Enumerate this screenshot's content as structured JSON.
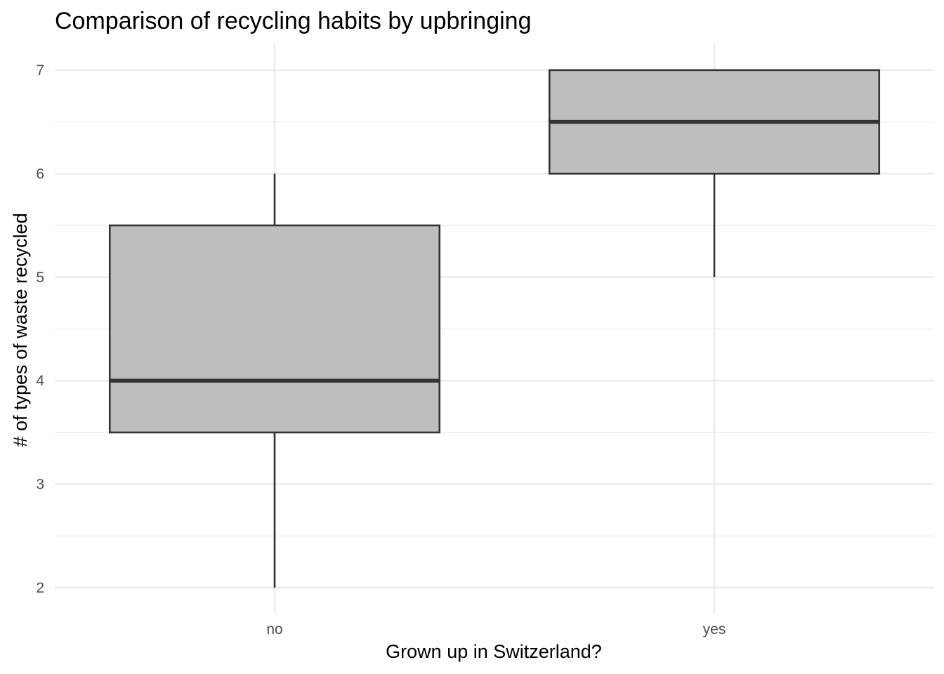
{
  "chart_data": {
    "type": "boxplot",
    "title": "Comparison of recycling habits by upbringing",
    "xlabel": "Grown up in Switzerland?",
    "ylabel": "# of types of waste recycled",
    "categories": [
      "no",
      "yes"
    ],
    "boxes": [
      {
        "category": "no",
        "min": 2,
        "q1": 3.5,
        "median": 4,
        "q3": 5.5,
        "max": 6
      },
      {
        "category": "yes",
        "min": 5,
        "q1": 6,
        "median": 6.5,
        "q3": 7,
        "max": 7
      }
    ],
    "ylim": [
      1.75,
      7.25
    ],
    "yticks": [
      2,
      3,
      4,
      5,
      6,
      7
    ],
    "grid": true,
    "colors": {
      "box_fill": "#bebebe",
      "box_stroke": "#333333",
      "grid": "#ebebeb"
    }
  }
}
